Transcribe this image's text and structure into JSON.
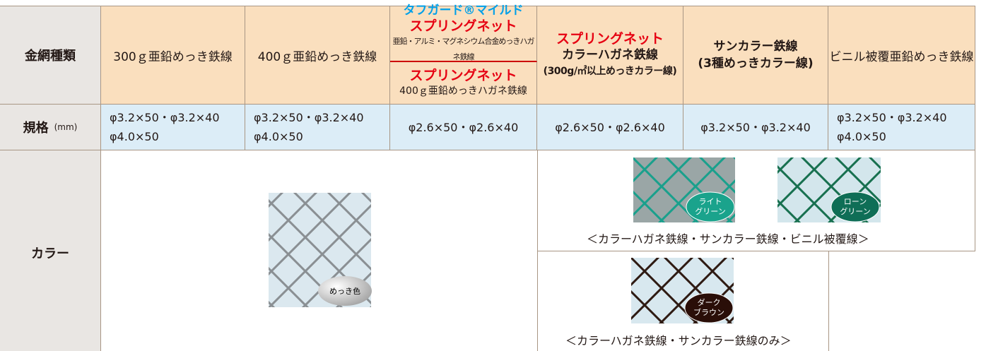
{
  "table": {
    "header": {
      "row_label": "金網種類",
      "columns": [
        {
          "lines": [
            "300ｇ亜鉛めっき鉄線"
          ]
        },
        {
          "lines": [
            "400ｇ亜鉛めっき鉄線"
          ]
        },
        {
          "top": [
            "タフガード®マイルド",
            "スプリングネット",
            "亜鉛・アルミ・マグネシウム合金めっきハガネ鉄線"
          ],
          "bottom": [
            "スプリングネット",
            "400ｇ亜鉛めっきハガネ鉄線"
          ]
        },
        {
          "lines": [
            "スプリングネット",
            "カラーハガネ鉄線",
            "(300g/㎡以上めっきカラー線)"
          ]
        },
        {
          "lines": [
            "サンカラー鉄線",
            "(3種めっきカラー線)"
          ]
        },
        {
          "lines": [
            "ビニル被覆亜鉛めっき鉄線"
          ]
        }
      ]
    },
    "spec": {
      "label": "規格",
      "unit": "(mm)",
      "values": [
        [
          "φ3.2×50・φ3.2×40",
          "φ4.0×50"
        ],
        [
          "φ3.2×50・φ3.2×40",
          "φ4.0×50"
        ],
        [
          "φ2.6×50・φ2.6×40"
        ],
        [
          "φ2.6×50・φ2.6×40"
        ],
        [
          "φ3.2×50・φ3.2×40"
        ],
        [
          "φ3.2×50・φ3.2×40",
          "φ4.0×50"
        ]
      ]
    },
    "color": {
      "label": "カラー",
      "galvanized": {
        "label": [
          "めっき色"
        ]
      },
      "group1": {
        "swatches": [
          {
            "label": [
              "ライト",
              "グリーン"
            ]
          },
          {
            "label": [
              "ローン",
              "グリーン"
            ]
          }
        ],
        "caption": "＜カラーハガネ鉄線・サンカラー鉄線・ビニル被覆線＞"
      },
      "group2": {
        "swatches": [
          {
            "label": [
              "ダーク",
              "ブラウン"
            ]
          }
        ],
        "caption": "＜カラーハガネ鉄線・サンカラー鉄線のみ＞"
      }
    }
  }
}
